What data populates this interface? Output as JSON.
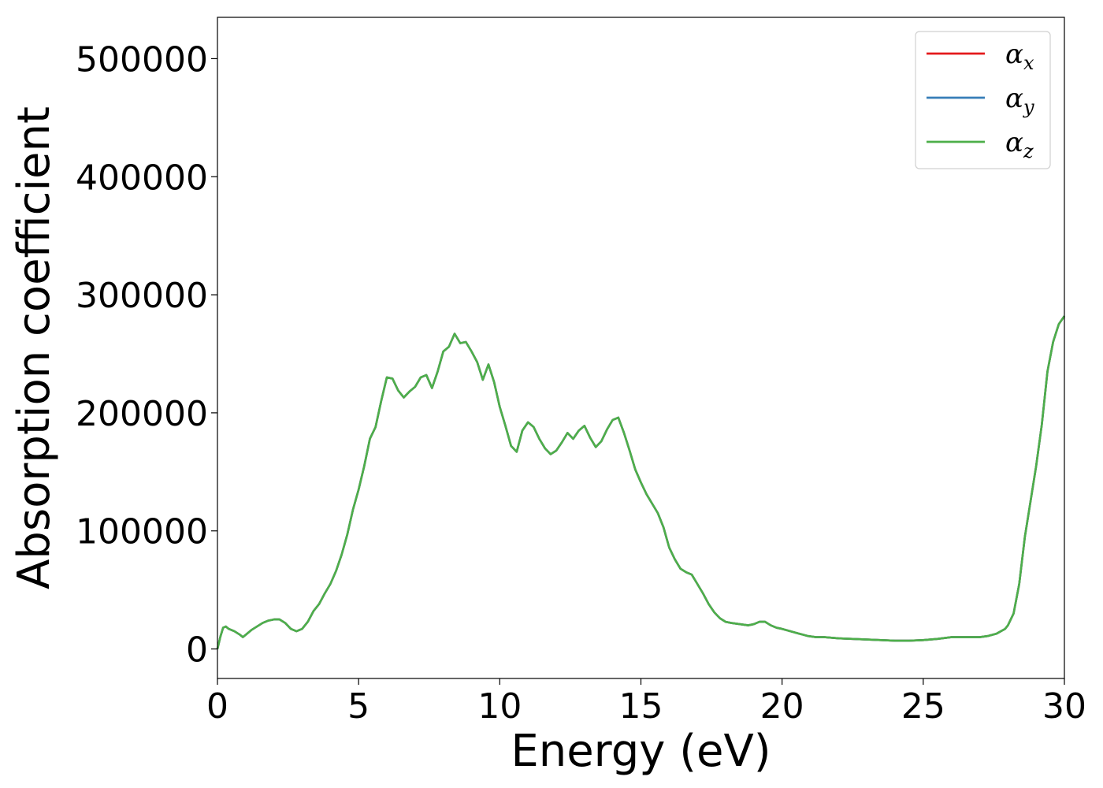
{
  "chart_data": {
    "type": "line",
    "xlabel": "Energy (eV)",
    "ylabel": "Absorption coefficient",
    "xlim": [
      0,
      30
    ],
    "ylim": [
      -25000,
      535000
    ],
    "x_ticks": [
      "0",
      "5",
      "10",
      "15",
      "20",
      "25",
      "30"
    ],
    "y_ticks": [
      "0",
      "100000",
      "200000",
      "300000",
      "400000",
      "500000"
    ],
    "grid": false,
    "legend_position": "top-right",
    "x": [
      0,
      0.1,
      0.2,
      0.3,
      0.4,
      0.6,
      0.8,
      0.9,
      1.0,
      1.2,
      1.4,
      1.6,
      1.8,
      2.0,
      2.2,
      2.4,
      2.6,
      2.8,
      3.0,
      3.2,
      3.4,
      3.6,
      3.8,
      4.0,
      4.2,
      4.4,
      4.6,
      4.8,
      5.0,
      5.2,
      5.4,
      5.6,
      5.8,
      6.0,
      6.2,
      6.4,
      6.6,
      6.8,
      7.0,
      7.2,
      7.4,
      7.6,
      7.8,
      8.0,
      8.2,
      8.4,
      8.6,
      8.8,
      9.0,
      9.2,
      9.4,
      9.6,
      9.8,
      10.0,
      10.2,
      10.4,
      10.6,
      10.8,
      11.0,
      11.2,
      11.4,
      11.6,
      11.8,
      12.0,
      12.2,
      12.4,
      12.6,
      12.8,
      13.0,
      13.2,
      13.4,
      13.6,
      13.8,
      14.0,
      14.2,
      14.4,
      14.6,
      14.8,
      15.0,
      15.2,
      15.4,
      15.6,
      15.8,
      16.0,
      16.2,
      16.4,
      16.6,
      16.8,
      17.0,
      17.2,
      17.4,
      17.6,
      17.8,
      18.0,
      18.2,
      18.5,
      18.8,
      19.0,
      19.2,
      19.4,
      19.6,
      19.8,
      20.0,
      20.3,
      20.6,
      20.9,
      21.2,
      21.5,
      22.0,
      22.5,
      23.0,
      23.5,
      24.0,
      24.5,
      25.0,
      25.5,
      26.0,
      26.5,
      27.0,
      27.3,
      27.6,
      27.9,
      28.0,
      28.2,
      28.4,
      28.6,
      28.8,
      29.0,
      29.2,
      29.4,
      29.6,
      29.8,
      30.0
    ],
    "series": [
      {
        "name": "α_x",
        "color": "#e41a1c",
        "y": [
          0,
          10000,
          18000,
          19000,
          17000,
          15000,
          12000,
          10000,
          12000,
          16000,
          19000,
          22000,
          24000,
          25000,
          25000,
          22000,
          17000,
          15000,
          17000,
          23000,
          32000,
          38000,
          47000,
          55000,
          66000,
          80000,
          97000,
          118000,
          135000,
          155000,
          178000,
          188000,
          210000,
          230000,
          229000,
          219000,
          213000,
          218000,
          222000,
          230000,
          232000,
          221000,
          235000,
          252000,
          256000,
          267000,
          259000,
          260000,
          252000,
          243000,
          228000,
          241000,
          226000,
          205000,
          189000,
          172000,
          167000,
          185000,
          192000,
          188000,
          178000,
          170000,
          165000,
          168000,
          175000,
          183000,
          178000,
          185000,
          189000,
          179000,
          171000,
          176000,
          186000,
          194000,
          196000,
          183000,
          168000,
          152000,
          141000,
          131000,
          123000,
          115000,
          103000,
          86000,
          76000,
          68000,
          65000,
          63000,
          55000,
          47000,
          38000,
          31000,
          26000,
          23000,
          22000,
          21000,
          20000,
          21000,
          23000,
          23000,
          20000,
          18000,
          17000,
          15000,
          13000,
          11000,
          10000,
          10000,
          9000,
          8500,
          8000,
          7500,
          7000,
          7000,
          7500,
          8500,
          10000,
          10000,
          10000,
          11000,
          13000,
          17000,
          20000,
          30000,
          55000,
          95000,
          125000,
          155000,
          190000,
          235000,
          260000,
          275000,
          282000
        ]
      },
      {
        "name": "α_y",
        "color": "#377eb8",
        "y": [
          0,
          10000,
          18000,
          19000,
          17000,
          15000,
          12000,
          10000,
          12000,
          16000,
          19000,
          22000,
          24000,
          25000,
          25000,
          22000,
          17000,
          15000,
          17000,
          23000,
          32000,
          38000,
          47000,
          55000,
          66000,
          80000,
          97000,
          118000,
          135000,
          155000,
          178000,
          188000,
          210000,
          230000,
          229000,
          219000,
          213000,
          218000,
          222000,
          230000,
          232000,
          221000,
          235000,
          252000,
          256000,
          267000,
          259000,
          260000,
          252000,
          243000,
          228000,
          241000,
          226000,
          205000,
          189000,
          172000,
          167000,
          185000,
          192000,
          188000,
          178000,
          170000,
          165000,
          168000,
          175000,
          183000,
          178000,
          185000,
          189000,
          179000,
          171000,
          176000,
          186000,
          194000,
          196000,
          183000,
          168000,
          152000,
          141000,
          131000,
          123000,
          115000,
          103000,
          86000,
          76000,
          68000,
          65000,
          63000,
          55000,
          47000,
          38000,
          31000,
          26000,
          23000,
          22000,
          21000,
          20000,
          21000,
          23000,
          23000,
          20000,
          18000,
          17000,
          15000,
          13000,
          11000,
          10000,
          10000,
          9000,
          8500,
          8000,
          7500,
          7000,
          7000,
          7500,
          8500,
          10000,
          10000,
          10000,
          11000,
          13000,
          17000,
          20000,
          30000,
          55000,
          95000,
          125000,
          155000,
          190000,
          235000,
          260000,
          275000,
          282000
        ]
      },
      {
        "name": "α_z",
        "color": "#4daf4a",
        "y": [
          0,
          10000,
          18000,
          19000,
          17000,
          15000,
          12000,
          10000,
          12000,
          16000,
          19000,
          22000,
          24000,
          25000,
          25000,
          22000,
          17000,
          15000,
          17000,
          23000,
          32000,
          38000,
          47000,
          55000,
          66000,
          80000,
          97000,
          118000,
          135000,
          155000,
          178000,
          188000,
          210000,
          230000,
          229000,
          219000,
          213000,
          218000,
          222000,
          230000,
          232000,
          221000,
          235000,
          252000,
          256000,
          267000,
          259000,
          260000,
          252000,
          243000,
          228000,
          241000,
          226000,
          205000,
          189000,
          172000,
          167000,
          185000,
          192000,
          188000,
          178000,
          170000,
          165000,
          168000,
          175000,
          183000,
          178000,
          185000,
          189000,
          179000,
          171000,
          176000,
          186000,
          194000,
          196000,
          183000,
          168000,
          152000,
          141000,
          131000,
          123000,
          115000,
          103000,
          86000,
          76000,
          68000,
          65000,
          63000,
          55000,
          47000,
          38000,
          31000,
          26000,
          23000,
          22000,
          21000,
          20000,
          21000,
          23000,
          23000,
          20000,
          18000,
          17000,
          15000,
          13000,
          11000,
          10000,
          10000,
          9000,
          8500,
          8000,
          7500,
          7000,
          7000,
          7500,
          8500,
          10000,
          10000,
          10000,
          11000,
          13000,
          17000,
          20000,
          30000,
          55000,
          95000,
          125000,
          155000,
          190000,
          235000,
          260000,
          275000,
          282000
        ]
      }
    ],
    "legend": [
      {
        "symbol": "α",
        "sub": "x",
        "color": "#e41a1c"
      },
      {
        "symbol": "α",
        "sub": "y",
        "color": "#377eb8"
      },
      {
        "symbol": "α",
        "sub": "z",
        "color": "#4daf4a"
      }
    ]
  }
}
